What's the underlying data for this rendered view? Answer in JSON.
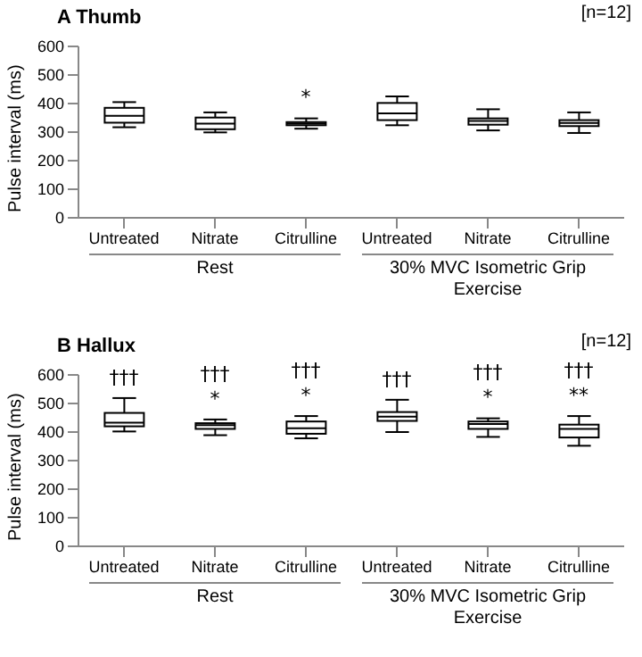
{
  "chart_data": [
    {
      "type": "box",
      "title": "A Thumb",
      "ylabel": "Pulse interval (ms)",
      "categories": [
        "Untreated",
        "Nitrate",
        "Citrulline",
        "Untreated",
        "Nitrate",
        "Citrulline"
      ],
      "color": "#000000",
      "boxes": [
        {
          "low": 317,
          "q1": 333,
          "median": 357,
          "q3": 385,
          "high": 405
        },
        {
          "low": 299,
          "q1": 310,
          "median": 330,
          "q3": 351,
          "high": 369
        },
        {
          "low": 312,
          "q1": 324,
          "median": 330,
          "q3": 335,
          "high": 348
        },
        {
          "low": 324,
          "q1": 342,
          "median": 366,
          "q3": 402,
          "high": 425
        },
        {
          "low": 306,
          "q1": 326,
          "median": 339,
          "q3": 348,
          "high": 380
        },
        {
          "low": 297,
          "q1": 321,
          "median": 332,
          "q3": 342,
          "high": 369
        }
      ],
      "ylim": [
        0,
        600
      ],
      "yticks": [
        0,
        100,
        200,
        300,
        400,
        500,
        600
      ],
      "grid": false,
      "legend": false,
      "value_labels": [
        null,
        null,
        "*",
        null,
        null,
        null
      ],
      "annotations": [
        "[n=12]",
        "Rest",
        "30% MVC Isometric Grip Exercise"
      ]
    },
    {
      "type": "box",
      "title": "B Hallux",
      "ylabel": "Pulse interval (ms)",
      "categories": [
        "Untreated",
        "Nitrate",
        "Citrulline",
        "Untreated",
        "Nitrate",
        "Citrulline"
      ],
      "color": "#000000",
      "boxes": [
        {
          "low": 402,
          "q1": 420,
          "median": 433,
          "q3": 467,
          "high": 519
        },
        {
          "low": 389,
          "q1": 411,
          "median": 424,
          "q3": 431,
          "high": 444
        },
        {
          "low": 378,
          "q1": 394,
          "median": 413,
          "q3": 437,
          "high": 456
        },
        {
          "low": 400,
          "q1": 439,
          "median": 454,
          "q3": 470,
          "high": 513
        },
        {
          "low": 383,
          "q1": 411,
          "median": 428,
          "q3": 437,
          "high": 448
        },
        {
          "low": 352,
          "q1": 381,
          "median": 411,
          "q3": 426,
          "high": 456
        }
      ],
      "ylim": [
        0,
        600
      ],
      "yticks": [
        0,
        100,
        200,
        300,
        400,
        500,
        600
      ],
      "grid": false,
      "legend": false,
      "value_labels": [
        "†††",
        "†††\n*",
        "†††\n*",
        "†††",
        "†††\n*",
        "†††\n**"
      ],
      "annotations": [
        "[n=12]",
        "Rest",
        "30% MVC Isometric Grip Exercise"
      ]
    }
  ]
}
